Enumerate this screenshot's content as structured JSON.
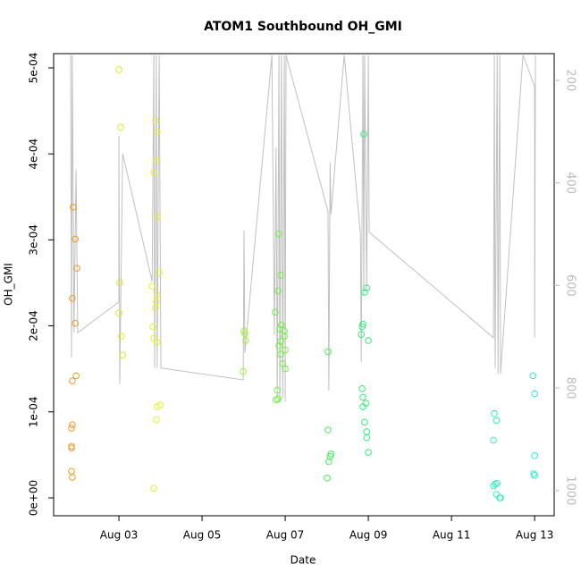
{
  "chart_data": {
    "type": "scatter",
    "title": "ATOM1 Southbound OH_GMI",
    "xlabel": "Date",
    "ylabel": "OH_GMI",
    "xlim": [
      1.43,
      13.47
    ],
    "ylim": [
      -2.08e-05,
      0.0005166
    ],
    "y2lim": [
      1049,
      148
    ],
    "xticks": [
      {
        "value": 3,
        "label": "Aug 03"
      },
      {
        "value": 5,
        "label": "Aug 05"
      },
      {
        "value": 7,
        "label": "Aug 07"
      },
      {
        "value": 9,
        "label": "Aug 09"
      },
      {
        "value": 11,
        "label": "Aug 11"
      },
      {
        "value": 13,
        "label": "Aug 13"
      }
    ],
    "yticks": [
      {
        "value": 0,
        "label": "0e+00"
      },
      {
        "value": 0.0001,
        "label": "1e-04"
      },
      {
        "value": 0.0002,
        "label": "2e-04"
      },
      {
        "value": 0.0003,
        "label": "3e-04"
      },
      {
        "value": 0.0004,
        "label": "4e-04"
      },
      {
        "value": 0.0005,
        "label": "5e-04"
      }
    ],
    "y2ticks": [
      200,
      400,
      600,
      800,
      1000
    ],
    "series": [
      {
        "type": "scatter",
        "x": [
          1.9,
          1.95,
          1.99,
          1.88,
          1.95,
          1.97,
          1.88,
          1.88,
          1.86,
          1.86,
          1.86,
          1.86,
          1.88,
          3.0,
          3.04,
          3.02,
          3.0,
          3.06,
          3.09,
          3.88,
          3.92,
          3.9,
          3.84,
          3.92,
          3.97,
          3.8,
          3.92,
          3.9,
          3.88,
          3.82,
          3.84,
          3.92,
          3.92,
          3.99,
          3.9,
          3.84,
          6.01,
          6.03,
          6.05,
          5.99,
          6.85,
          6.89,
          6.83,
          6.76,
          6.91,
          6.87,
          6.98,
          6.98,
          6.89,
          6.85,
          7.0,
          6.89,
          6.94,
          7.0,
          6.81,
          6.83,
          6.78,
          8.03,
          8.03,
          8.1,
          8.08,
          8.05,
          8.01,
          8.89,
          8.96,
          8.91,
          8.87,
          8.85,
          8.83,
          9.0,
          8.85,
          8.87,
          8.94,
          8.87,
          8.91,
          8.96,
          8.96,
          9.0,
          12.03,
          12.08,
          12.01,
          12.1,
          12.05,
          12.01,
          12.08,
          12.16,
          12.18,
          12.96,
          13.0,
          13.0,
          12.98,
          13.0
        ],
        "values": [
          0.000338,
          0.000301,
          0.000267,
          0.000232,
          0.000203,
          0.000142,
          0.000136,
          8.5e-05,
          8.1e-05,
          6e-05,
          5.8e-05,
          3.1e-05,
          2.4e-05,
          0.000498,
          0.000431,
          0.00025,
          0.000215,
          0.000188,
          0.000166,
          0.000439,
          0.000425,
          0.000392,
          0.000378,
          0.000327,
          0.000262,
          0.000246,
          0.000236,
          0.000228,
          0.000221,
          0.000199,
          0.000186,
          0.000181,
          0.000106,
          0.000108,
          9.1e-05,
          1.1e-05,
          0.000194,
          0.000191,
          0.000183,
          0.000147,
          0.000307,
          0.000259,
          0.000241,
          0.000216,
          0.000201,
          0.000196,
          0.000194,
          0.000188,
          0.000182,
          0.000177,
          0.000172,
          0.000167,
          0.000156,
          0.00015,
          0.000125,
          0.000115,
          0.000114,
          0.00017,
          7.9e-05,
          5.1e-05,
          4.8e-05,
          4.2e-05,
          2.3e-05,
          0.000423,
          0.000244,
          0.000239,
          0.000202,
          0.000199,
          0.00019,
          0.000183,
          0.000127,
          0.000117,
          0.00011,
          0.000106,
          8.8e-05,
          7.7e-05,
          7e-05,
          5.3e-05,
          9.8e-05,
          9e-05,
          6.7e-05,
          1.7e-05,
          1.6e-05,
          1.4e-05,
          4e-06,
          0,
          0,
          0.000142,
          0.000121,
          4.9e-05,
          2.8e-05,
          2.6e-05
        ],
        "colors": [
          "#ee9a28",
          "#ee9a28",
          "#ee9a28",
          "#ee9a28",
          "#ee9a28",
          "#ee9a28",
          "#ee9a28",
          "#ee9a28",
          "#ee9a28",
          "#ee9a28",
          "#ee9a28",
          "#ee9a28",
          "#ee9a28",
          "#dce828",
          "#dce828",
          "#dce828",
          "#dce828",
          "#dce828",
          "#dce828",
          "#e8f028",
          "#e8f028",
          "#e8f028",
          "#e8f028",
          "#e8f028",
          "#e8f028",
          "#e8f028",
          "#e8f028",
          "#e8f028",
          "#e8f028",
          "#e8f028",
          "#e8f028",
          "#e8f028",
          "#e8f028",
          "#e8f028",
          "#e8f028",
          "#e8f028",
          "#a8f038",
          "#a8f038",
          "#a8f038",
          "#a8f038",
          "#70f040",
          "#70f040",
          "#70f040",
          "#70f040",
          "#70f040",
          "#70f040",
          "#70f040",
          "#70f040",
          "#70f040",
          "#70f040",
          "#70f040",
          "#70f040",
          "#70f040",
          "#70f040",
          "#70f040",
          "#70f040",
          "#70f040",
          "#40f058",
          "#40f058",
          "#40f058",
          "#40f058",
          "#40f058",
          "#40f058",
          "#30f078",
          "#30f078",
          "#30f078",
          "#30f078",
          "#30f078",
          "#30f078",
          "#30f078",
          "#30f078",
          "#30f078",
          "#30f078",
          "#30f078",
          "#30f078",
          "#30f078",
          "#30f078",
          "#30f078",
          "#30f0c0",
          "#30f0c0",
          "#30f0c0",
          "#30f0c0",
          "#30f0c0",
          "#30f0c0",
          "#30f0c0",
          "#30f0c0",
          "#30f0c0",
          "#30e8d8",
          "#30e8d8",
          "#30e8d8",
          "#30e8d8",
          "#30e8d8"
        ]
      },
      {
        "type": "line",
        "axis": "y2",
        "color": "#c0c0c0",
        "x": [
          1.84,
          1.86,
          1.88,
          1.92,
          1.97,
          2.01,
          3.0,
          3.0,
          3.02,
          3.09,
          3.8,
          3.84,
          3.86,
          3.9,
          3.92,
          3.97,
          4.01,
          5.99,
          6.01,
          6.03,
          6.68,
          6.74,
          6.78,
          6.81,
          6.85,
          6.87,
          6.91,
          6.94,
          6.98,
          7.0,
          7.02,
          8.03,
          8.05,
          8.08,
          8.1,
          8.42,
          8.81,
          8.83,
          8.87,
          8.89,
          8.91,
          8.96,
          9.0,
          9.02,
          12.01,
          12.03,
          12.05,
          12.1,
          12.12,
          12.16,
          12.18,
          12.72,
          13.0,
          13.0,
          13.02
        ],
        "values": [
          151,
          740,
          151,
          692,
          374,
          692,
          632,
          308,
          793,
          343,
          592,
          151,
          761,
          151,
          761,
          151,
          761,
          784,
          493,
          732,
          151,
          697,
          331,
          819,
          151,
          827,
          151,
          819,
          151,
          827,
          151,
          456,
          805,
          360,
          461,
          151,
          500,
          749,
          151,
          618,
          151,
          610,
          151,
          496,
          702,
          151,
          761,
          151,
          772,
          151,
          772,
          151,
          212,
          702,
          151
        ]
      }
    ]
  }
}
